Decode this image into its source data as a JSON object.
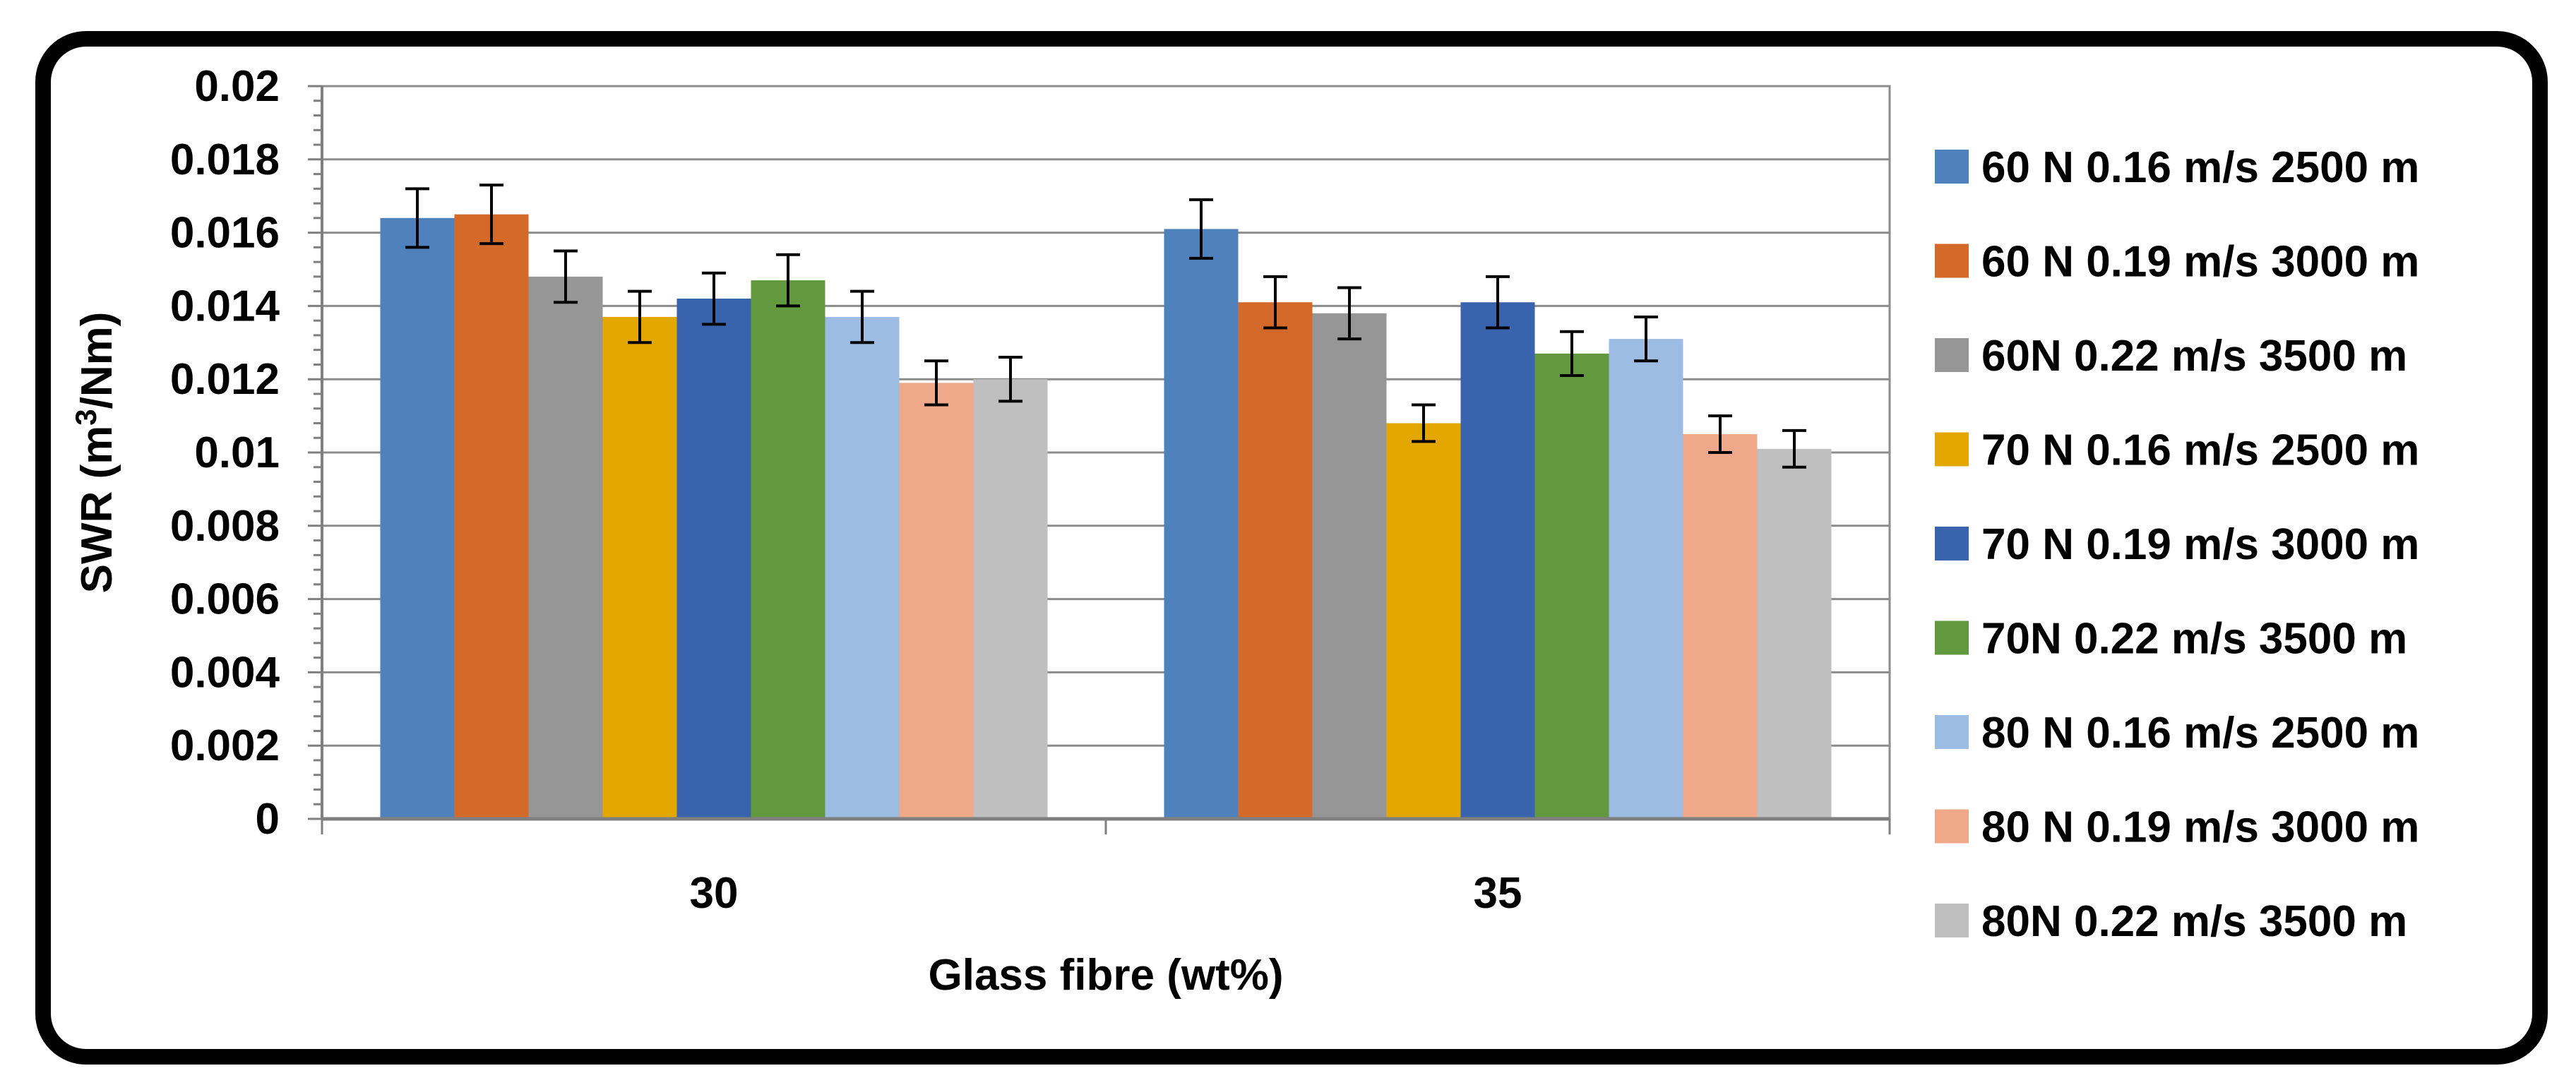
{
  "chart_data": {
    "type": "bar",
    "title": "",
    "xlabel": "Glass fibre (wt%)",
    "ylabel_prefix": "SWR (m",
    "ylabel_sup": "3",
    "ylabel_suffix": "/Nm)",
    "ylim": [
      0,
      0.02
    ],
    "yticks": [
      "0",
      "0.002",
      "0.004",
      "0.006",
      "0.008",
      "0.01",
      "0.012",
      "0.014",
      "0.016",
      "0.018",
      "0.02"
    ],
    "grid": true,
    "error_bars": true,
    "legend_position": "right",
    "categories": [
      "30",
      "35"
    ],
    "series": [
      {
        "name": "60 N 0.16 m/s 2500 m",
        "color": "#4F81BD",
        "values": [
          0.0164,
          0.0161
        ],
        "errors": [
          0.0008,
          0.0008
        ]
      },
      {
        "name": "60 N 0.19 m/s 3000 m",
        "color": "#D46A2A",
        "values": [
          0.0165,
          0.0141
        ],
        "errors": [
          0.0008,
          0.0007
        ]
      },
      {
        "name": "60N 0.22 m/s 3500 m",
        "color": "#969696",
        "values": [
          0.0148,
          0.0138
        ],
        "errors": [
          0.0007,
          0.0007
        ]
      },
      {
        "name": "70 N 0.16 m/s 2500 m",
        "color": "#E3A700",
        "values": [
          0.0137,
          0.0108
        ],
        "errors": [
          0.0007,
          0.0005
        ]
      },
      {
        "name": "70 N 0.19 m/s 3000 m",
        "color": "#3A63AD",
        "values": [
          0.0142,
          0.0141
        ],
        "errors": [
          0.0007,
          0.0007
        ]
      },
      {
        "name": "70N 0.22 m/s 3500 m",
        "color": "#62993E",
        "values": [
          0.0147,
          0.0127
        ],
        "errors": [
          0.0007,
          0.0006
        ]
      },
      {
        "name": "80 N 0.16 m/s 2500 m",
        "color": "#9DBCE3",
        "values": [
          0.0137,
          0.0131
        ],
        "errors": [
          0.0007,
          0.0006
        ]
      },
      {
        "name": "80 N 0.19 m/s 3000 m",
        "color": "#F0A88A",
        "values": [
          0.0119,
          0.0105
        ],
        "errors": [
          0.0006,
          0.0005
        ]
      },
      {
        "name": "80N 0.22 m/s 3500 m",
        "color": "#BFBFBF",
        "values": [
          0.012,
          0.0101
        ],
        "errors": [
          0.0006,
          0.0005
        ]
      }
    ]
  }
}
